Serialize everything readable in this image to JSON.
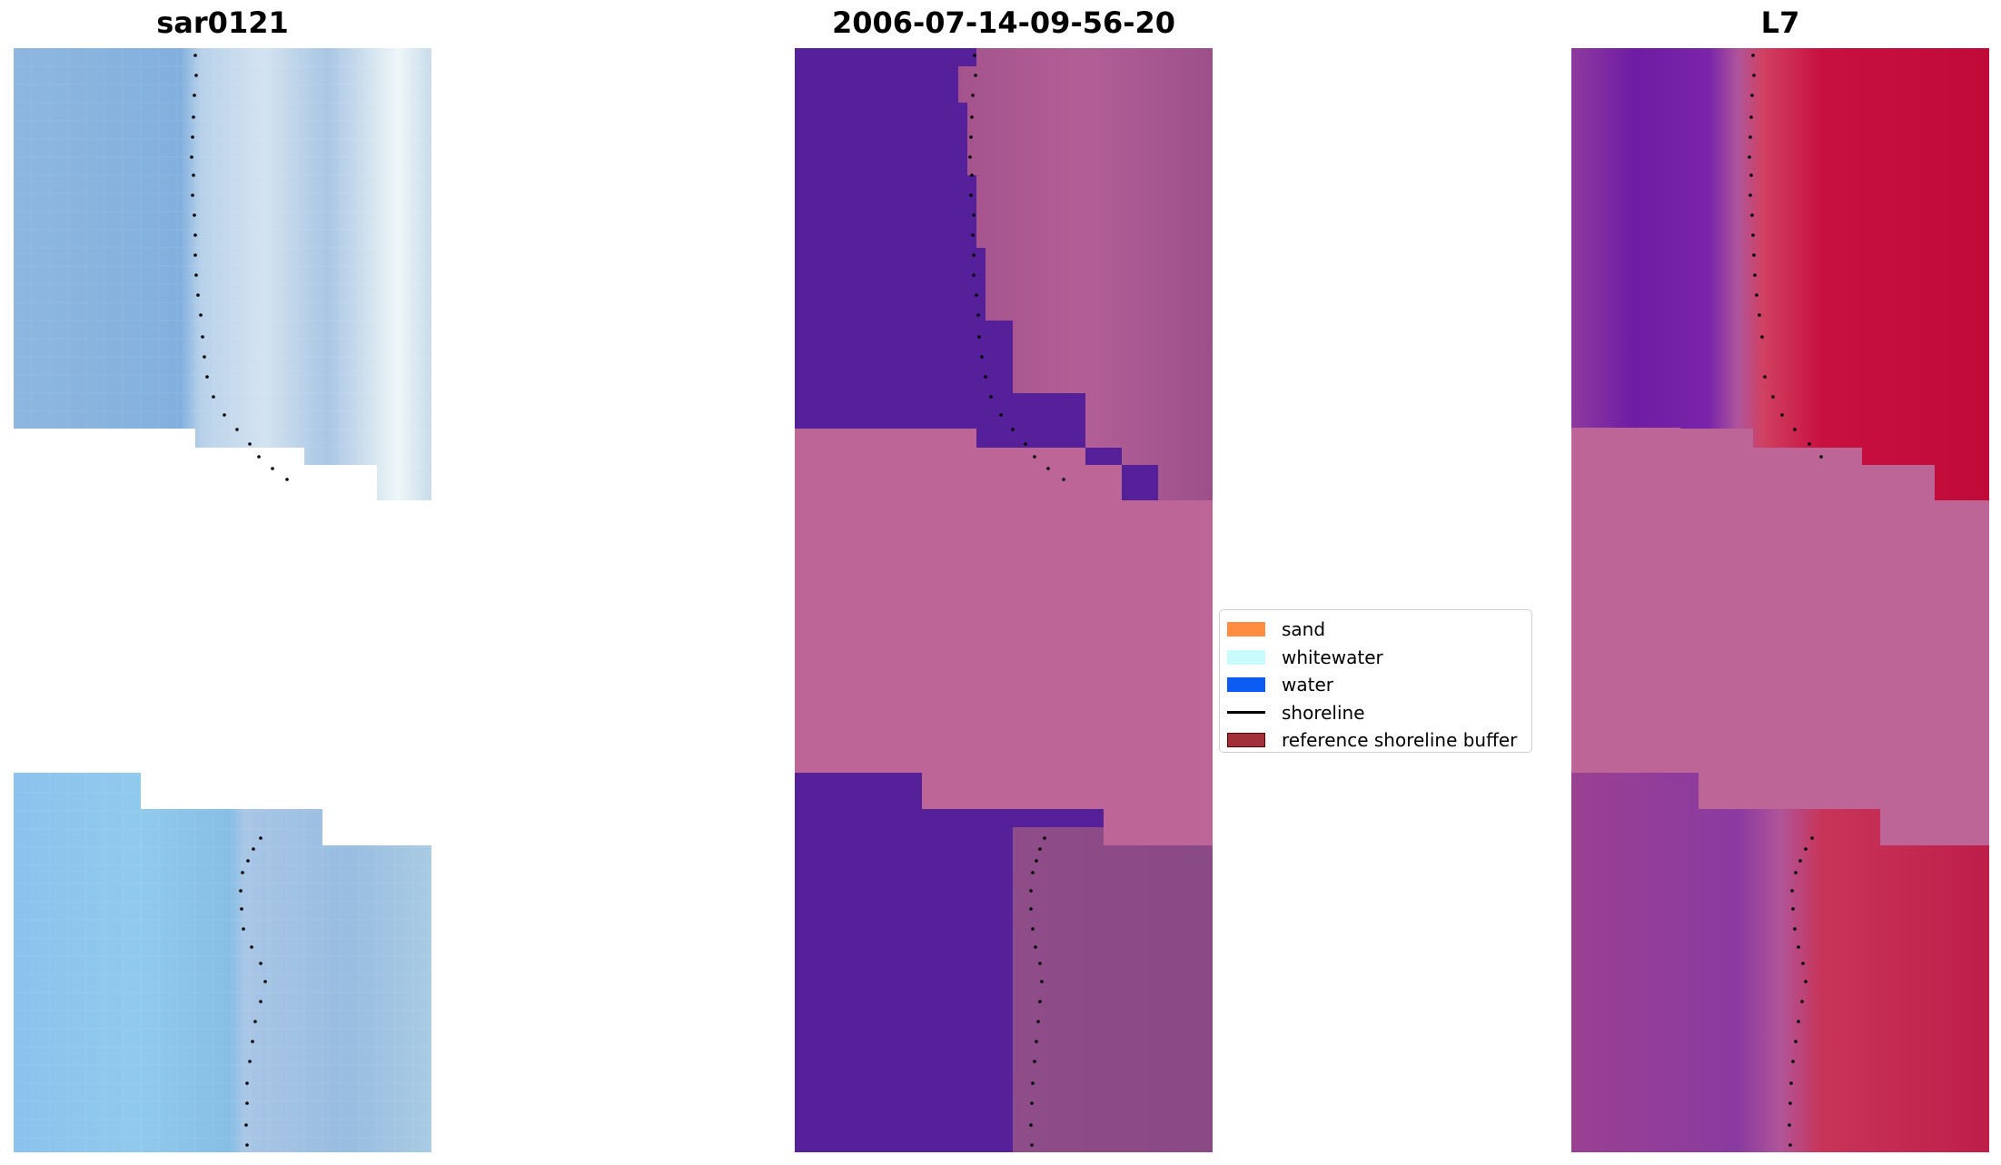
{
  "panels": [
    {
      "title": "sar0121",
      "kind": "rgb-image"
    },
    {
      "title": "2006-07-14-09-56-20",
      "kind": "classified-image"
    },
    {
      "title": "L7",
      "kind": "index-image"
    }
  ],
  "legend": {
    "items": [
      {
        "label": "sand",
        "type": "patch",
        "color": "#ff8c3f"
      },
      {
        "label": "whitewater",
        "type": "patch",
        "color": "#c8fcfc"
      },
      {
        "label": "water",
        "type": "patch",
        "color": "#0a5cf2"
      },
      {
        "label": "shoreline",
        "type": "line",
        "color": "#000000"
      },
      {
        "label": "reference shoreline buffer",
        "type": "patch",
        "color": "#a0303a",
        "edge": "#600000"
      }
    ]
  },
  "colors": {
    "rgb_water": "#86b4e0",
    "rgb_light": "#c4d8ea",
    "rgb_white": "#f4f8fa",
    "class_dark": "#55209a",
    "class_pink": "#bd6596",
    "class_mauve": "#9e4f8a",
    "index_purple": "#7a2aa6",
    "index_red": "#c4103a",
    "index_pink": "#bd6596",
    "shoreline_dots": "#000000"
  }
}
